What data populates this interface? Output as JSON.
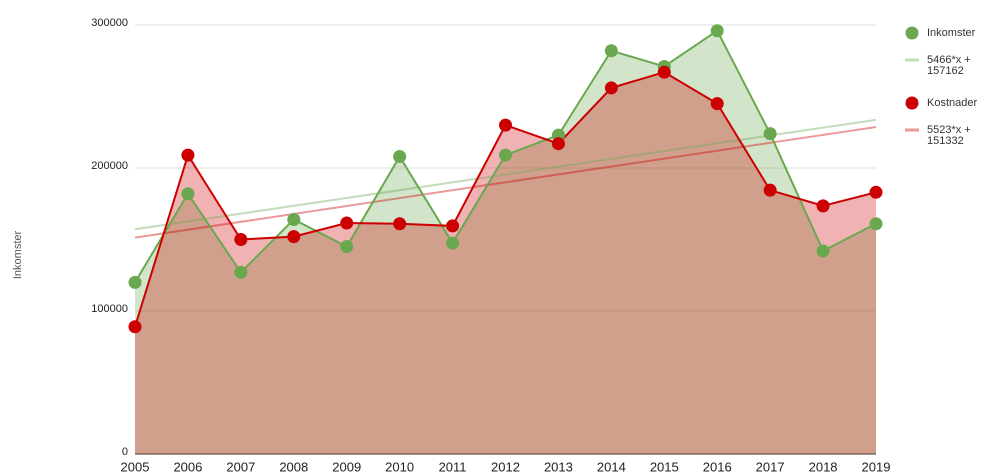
{
  "chart_data": {
    "type": "area",
    "y_axis_label": "Inkomster",
    "categories": [
      "2005",
      "2006",
      "2007",
      "2008",
      "2009",
      "2010",
      "2011",
      "2012",
      "2013",
      "2014",
      "2015",
      "2016",
      "2017",
      "2018",
      "2019"
    ],
    "series": [
      {
        "name": "Inkomster",
        "color": "#6aa84f",
        "values": [
          120000,
          182000,
          127000,
          164000,
          145000,
          208000,
          147500,
          209000,
          223000,
          282000,
          271000,
          296000,
          224000,
          142000,
          161000
        ],
        "trendline": {
          "slope": 5466,
          "intercept": 157162,
          "label": "5466*x + 157162"
        }
      },
      {
        "name": "Kostnader",
        "color": "#cc0000",
        "values": [
          89000,
          209000,
          150000,
          152000,
          161500,
          161000,
          159500,
          230000,
          217000,
          256000,
          267000,
          245000,
          184500,
          173500,
          183000
        ],
        "trendline": {
          "slope": 5523,
          "intercept": 151332,
          "label": "5523*x + 151332"
        }
      }
    ],
    "ylim": [
      0,
      300000
    ],
    "yticks": [
      0,
      100000,
      200000,
      300000
    ],
    "grid": true,
    "legend": "right"
  }
}
